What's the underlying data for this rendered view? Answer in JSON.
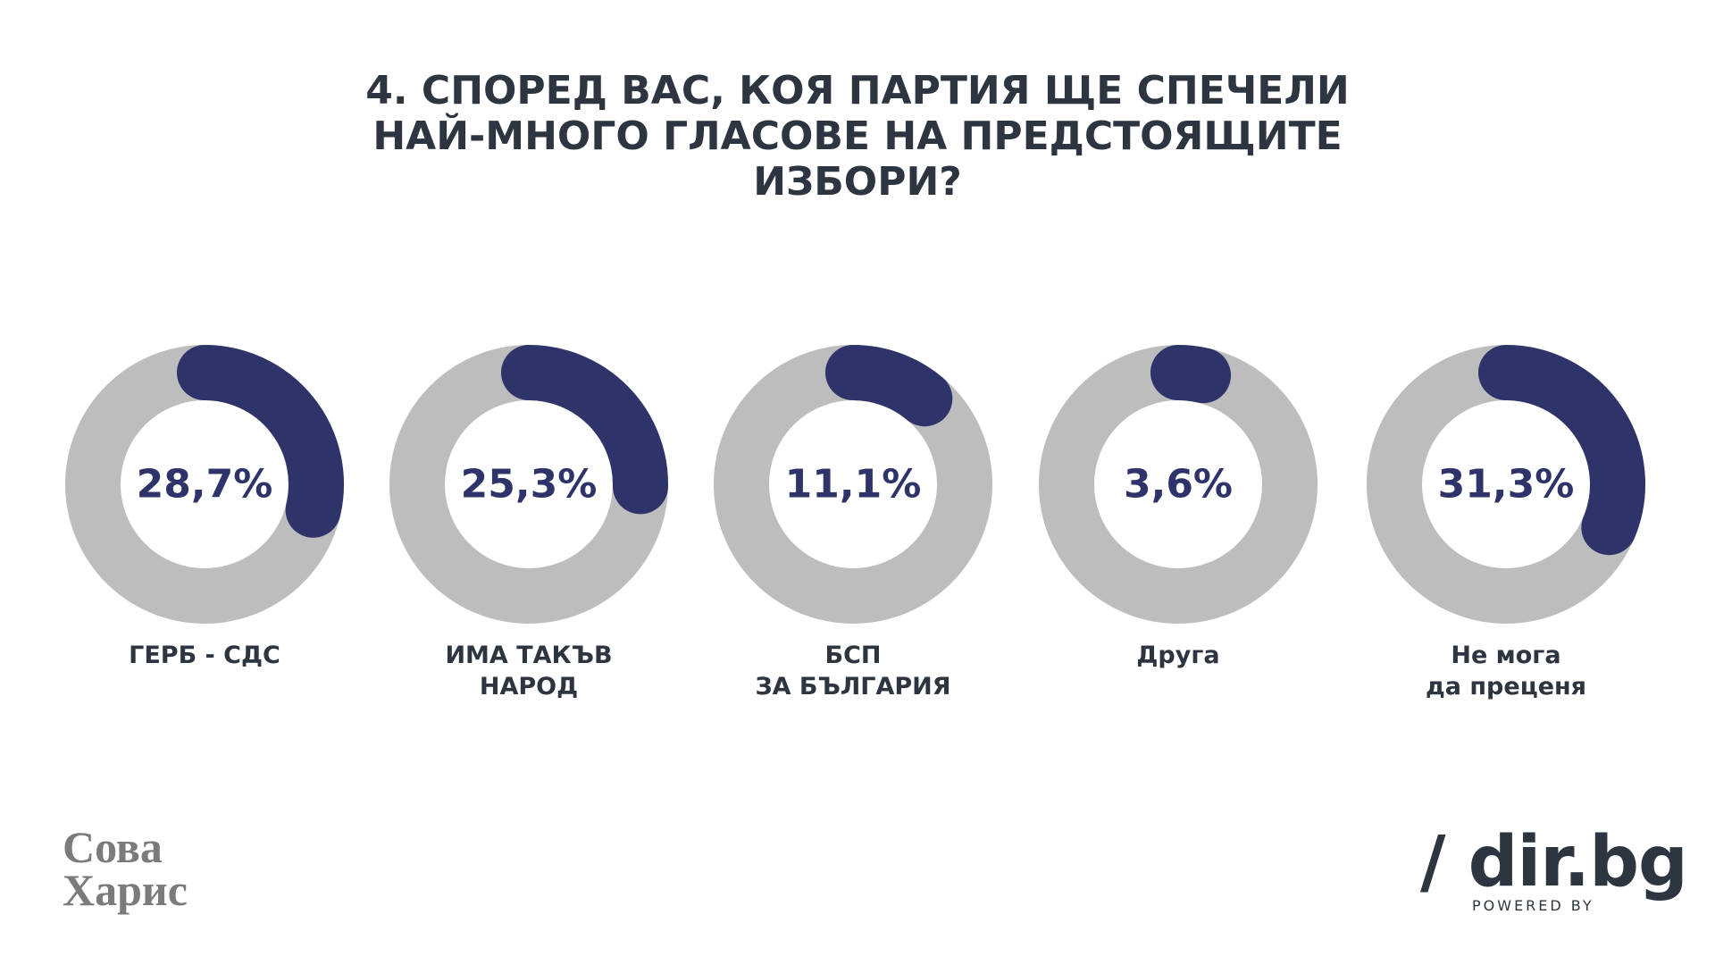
{
  "chart_data": {
    "type": "donut",
    "title": "4. СПОРЕД ВАС, КОЯ ПАРТИЯ ЩЕ СПЕЧЕЛИ\nНАЙ-МНОГО ГЛАСОВЕ НА ПРЕДСТОЯЩИТЕ\nИЗБОРИ?",
    "categories": [
      "ГЕРБ - СДС",
      "ИМА ТАКЪВ\nНАРОД",
      "БСП\nЗА БЪЛГАРИЯ",
      "Друга",
      "Не мога\nда преценя"
    ],
    "values": [
      28.7,
      25.3,
      11.1,
      3.6,
      31.3
    ],
    "value_labels": [
      "28,7%",
      "25,3%",
      "11,1%",
      "3,6%",
      "31,3%"
    ],
    "color": "#2e3469",
    "track_color": "#bdbdbd"
  },
  "branding": {
    "left_logo": "Сова\nХарис",
    "right_logo": "/ dir.bg",
    "powered_by": "POWERED BY"
  }
}
